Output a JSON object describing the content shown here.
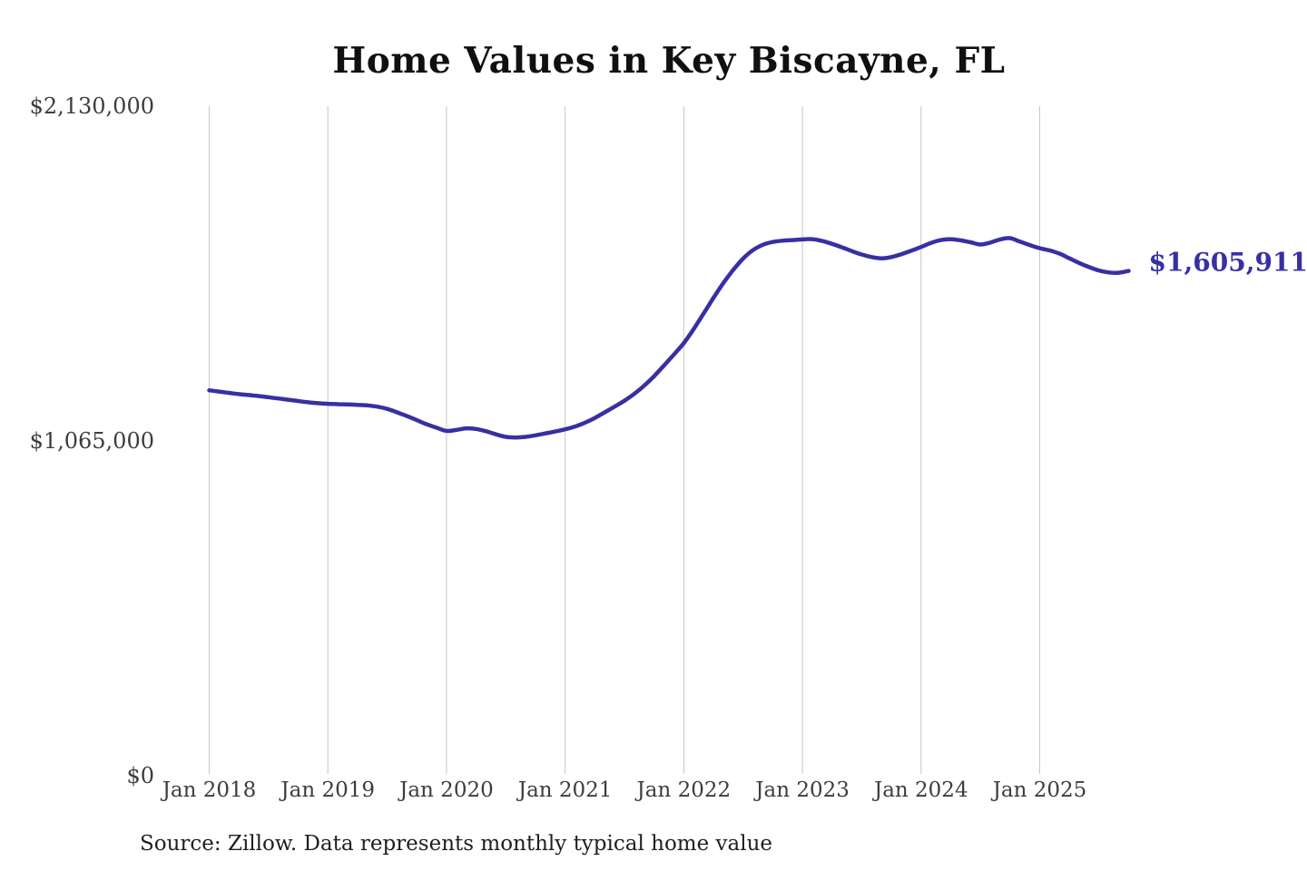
{
  "chart": {
    "title": "Home Values in Key Biscayne, FL",
    "end_label": "$1,605,911",
    "source": "Source: Zillow. Data represents monthly typical home value"
  },
  "chart_data": {
    "type": "line",
    "title": "Home Values in Key Biscayne, FL",
    "series_name": "Monthly typical home value (USD)",
    "line_color": "#3730a3",
    "grid": "vertical-only",
    "legend": "none",
    "ylim": [
      0,
      2130000
    ],
    "y_ticks": [
      {
        "label": "$2,130,000",
        "value": 2130000
      },
      {
        "label": "$1,065,000",
        "value": 1065000
      },
      {
        "label": "$0",
        "value": 0
      }
    ],
    "x_ticks": [
      "Jan 2018",
      "Jan 2019",
      "Jan 2020",
      "Jan 2021",
      "Jan 2022",
      "Jan 2023",
      "Jan 2024",
      "Jan 2025"
    ],
    "annotation": {
      "text": "$1,605,911",
      "value": 1605911
    },
    "x": [
      "2018-01",
      "2018-02",
      "2018-03",
      "2018-04",
      "2018-05",
      "2018-06",
      "2018-07",
      "2018-08",
      "2018-09",
      "2018-10",
      "2018-11",
      "2018-12",
      "2019-01",
      "2019-02",
      "2019-03",
      "2019-04",
      "2019-05",
      "2019-06",
      "2019-07",
      "2019-08",
      "2019-09",
      "2019-10",
      "2019-11",
      "2019-12",
      "2020-01",
      "2020-02",
      "2020-03",
      "2020-04",
      "2020-05",
      "2020-06",
      "2020-07",
      "2020-08",
      "2020-09",
      "2020-10",
      "2020-11",
      "2020-12",
      "2021-01",
      "2021-02",
      "2021-03",
      "2021-04",
      "2021-05",
      "2021-06",
      "2021-07",
      "2021-08",
      "2021-09",
      "2021-10",
      "2021-11",
      "2021-12",
      "2022-01",
      "2022-02",
      "2022-03",
      "2022-04",
      "2022-05",
      "2022-06",
      "2022-07",
      "2022-08",
      "2022-09",
      "2022-10",
      "2022-11",
      "2022-12",
      "2023-01",
      "2023-02",
      "2023-03",
      "2023-04",
      "2023-05",
      "2023-06",
      "2023-07",
      "2023-08",
      "2023-09",
      "2023-10",
      "2023-11",
      "2023-12",
      "2024-01",
      "2024-02",
      "2024-03",
      "2024-04",
      "2024-05",
      "2024-06",
      "2024-07",
      "2024-08",
      "2024-09",
      "2024-10",
      "2024-11",
      "2024-12",
      "2025-01",
      "2025-02",
      "2025-03",
      "2025-04",
      "2025-05",
      "2025-06",
      "2025-07",
      "2025-08",
      "2025-09",
      "2025-10"
    ],
    "values": [
      1226000,
      1222000,
      1218000,
      1214000,
      1211000,
      1208000,
      1204000,
      1200000,
      1196000,
      1192000,
      1188000,
      1185000,
      1183000,
      1182000,
      1181000,
      1180000,
      1178000,
      1174000,
      1167000,
      1156000,
      1144000,
      1131000,
      1118000,
      1107000,
      1097000,
      1100000,
      1105000,
      1103000,
      1096000,
      1086000,
      1078000,
      1076000,
      1078000,
      1083000,
      1089000,
      1095000,
      1102000,
      1111000,
      1123000,
      1138000,
      1156000,
      1174000,
      1193000,
      1215000,
      1241000,
      1271000,
      1305000,
      1340000,
      1376000,
      1421000,
      1470000,
      1520000,
      1567000,
      1609000,
      1645000,
      1672000,
      1689000,
      1698000,
      1702000,
      1704000,
      1706000,
      1707000,
      1701000,
      1692000,
      1681000,
      1669000,
      1658000,
      1650000,
      1646000,
      1650000,
      1659000,
      1670000,
      1682000,
      1695000,
      1704000,
      1707000,
      1703000,
      1697000,
      1690000,
      1696000,
      1706000,
      1710000,
      1699000,
      1688000,
      1678000,
      1671000,
      1661000,
      1646000,
      1631000,
      1618000,
      1607000,
      1601000,
      1600000,
      1605911
    ],
    "source": "Source: Zillow. Data represents monthly typical home value"
  }
}
